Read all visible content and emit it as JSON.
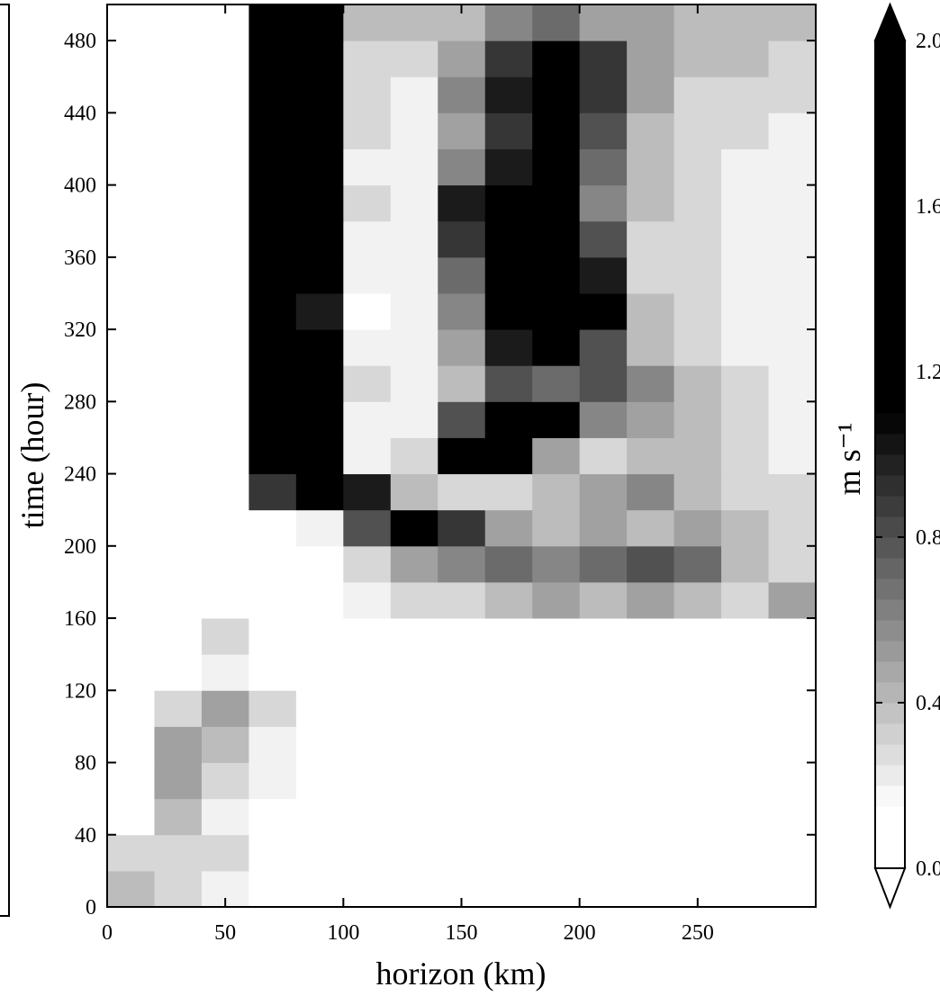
{
  "chart_data": {
    "type": "heatmap",
    "xlabel": "horizon (km)",
    "ylabel": "time (hour)",
    "colorbar_label": "m s⁻¹",
    "xlim": [
      0,
      300
    ],
    "ylim": [
      0,
      500
    ],
    "xticks": [
      0,
      50,
      100,
      150,
      200,
      250
    ],
    "yticks": [
      0,
      40,
      80,
      120,
      160,
      200,
      240,
      280,
      320,
      360,
      400,
      440,
      480
    ],
    "clim": [
      0,
      2
    ],
    "cticks": [
      {
        "value": 0,
        "label": "0.0"
      },
      {
        "value": 0.4,
        "label": "0.4"
      },
      {
        "value": 0.8,
        "label": "0.8"
      },
      {
        "value": 1.2,
        "label": "1.2"
      },
      {
        "value": 1.6,
        "label": "1.6"
      },
      {
        "value": 2,
        "label": "2.0"
      }
    ],
    "x_edges": [
      0,
      20,
      40,
      60,
      80,
      100,
      120,
      140,
      160,
      180,
      200,
      220,
      240,
      260,
      280,
      300
    ],
    "y_edges": [
      0,
      20,
      40,
      60,
      80,
      100,
      120,
      140,
      160,
      180,
      200,
      220,
      240,
      260,
      280,
      300,
      320,
      340,
      360,
      380,
      400,
      420,
      440,
      460,
      480,
      500
    ],
    "z": [
      [
        0.4,
        0.3,
        0.2,
        0.1,
        0.1,
        0.1,
        0.1,
        0.1,
        0.1,
        0,
        0,
        0,
        0,
        0,
        0
      ],
      [
        0.3,
        0.3,
        0.3,
        0.1,
        0.1,
        0,
        0,
        0,
        0,
        0,
        0,
        0.1,
        0,
        0,
        0
      ],
      [
        0.1,
        0.4,
        0.2,
        0.1,
        0.1,
        0.1,
        0,
        0,
        0,
        0,
        0,
        0,
        0,
        0,
        0
      ],
      [
        0.1,
        0.5,
        0.3,
        0.2,
        0.1,
        0.1,
        0,
        0,
        0,
        0,
        0,
        0,
        0.1,
        0,
        0
      ],
      [
        0.1,
        0.5,
        0.4,
        0.2,
        0.1,
        0,
        0,
        0,
        0,
        0,
        0,
        0,
        0,
        0,
        0
      ],
      [
        0,
        0.3,
        0.5,
        0.3,
        0.1,
        0,
        0,
        0,
        0,
        0,
        0,
        0,
        0,
        0,
        0
      ],
      [
        0,
        0.1,
        0.2,
        0.1,
        0,
        0,
        0,
        0,
        0,
        0,
        0,
        0,
        0,
        0,
        0
      ],
      [
        0.1,
        0.1,
        0.3,
        0.1,
        0,
        0,
        0,
        0.1,
        0.1,
        0,
        0,
        0,
        0,
        0,
        0
      ],
      [
        0,
        0,
        0,
        0,
        0.1,
        0.2,
        0.3,
        0.3,
        0.4,
        0.5,
        0.4,
        0.5,
        0.4,
        0.3,
        0.5
      ],
      [
        0,
        0,
        0,
        0,
        0.1,
        0.3,
        0.5,
        0.6,
        0.7,
        0.6,
        0.7,
        0.8,
        0.7,
        0.4,
        0.3
      ],
      [
        0,
        0,
        0,
        0,
        0.2,
        0.8,
        1.4,
        0.9,
        0.5,
        0.4,
        0.5,
        0.4,
        0.5,
        0.4,
        0.3
      ],
      [
        0,
        0,
        0,
        0.9,
        1.6,
        1.0,
        0.4,
        0.3,
        0.3,
        0.4,
        0.5,
        0.6,
        0.4,
        0.3,
        0.3
      ],
      [
        0,
        0,
        0,
        2.0,
        1.2,
        0.2,
        0.3,
        1.5,
        1.2,
        0.5,
        0.3,
        0.4,
        0.4,
        0.3,
        0.2
      ],
      [
        0,
        0,
        0,
        2.0,
        1.4,
        0.2,
        0.2,
        0.8,
        1.2,
        1.3,
        0.6,
        0.5,
        0.4,
        0.3,
        0.2
      ],
      [
        0,
        0,
        0,
        2.0,
        1.6,
        0.3,
        0.2,
        0.4,
        0.8,
        0.7,
        0.8,
        0.6,
        0.4,
        0.3,
        0.2
      ],
      [
        0,
        0,
        0,
        2.0,
        1.2,
        0.2,
        0.2,
        0.5,
        1.0,
        1.2,
        0.8,
        0.4,
        0.3,
        0.2,
        0.2
      ],
      [
        0,
        0,
        0,
        2.0,
        1.0,
        0.1,
        0.2,
        0.6,
        1.3,
        1.6,
        1.2,
        0.4,
        0.3,
        0.2,
        0.2
      ],
      [
        0,
        0,
        0,
        2.0,
        1.2,
        0.2,
        0.2,
        0.7,
        1.4,
        1.6,
        1.0,
        0.3,
        0.3,
        0.2,
        0.2
      ],
      [
        0,
        0,
        0,
        2.0,
        1.4,
        0.2,
        0.2,
        0.9,
        1.2,
        1.1,
        0.8,
        0.3,
        0.3,
        0.2,
        0.2
      ],
      [
        0,
        0,
        0,
        2.0,
        1.6,
        0.3,
        0.2,
        1.0,
        1.3,
        1.2,
        0.6,
        0.4,
        0.3,
        0.2,
        0.2
      ],
      [
        0,
        0,
        0,
        2.0,
        1.6,
        0.2,
        0.2,
        0.6,
        1.0,
        1.2,
        0.7,
        0.4,
        0.3,
        0.2,
        0.2
      ],
      [
        0,
        0,
        0,
        2.0,
        1.6,
        0.3,
        0.2,
        0.5,
        0.9,
        1.1,
        0.8,
        0.4,
        0.3,
        0.3,
        0.2
      ],
      [
        0,
        0,
        0,
        2.0,
        1.6,
        0.3,
        0.2,
        0.6,
        1.0,
        1.1,
        0.9,
        0.5,
        0.3,
        0.3,
        0.3
      ],
      [
        0,
        0,
        0,
        2.0,
        1.6,
        0.3,
        0.3,
        0.5,
        0.9,
        1.2,
        0.9,
        0.5,
        0.4,
        0.4,
        0.3
      ],
      [
        0,
        0,
        0,
        2.0,
        1.6,
        0.4,
        0.4,
        0.4,
        0.6,
        0.7,
        0.5,
        0.5,
        0.4,
        0.4,
        0.4
      ]
    ]
  }
}
